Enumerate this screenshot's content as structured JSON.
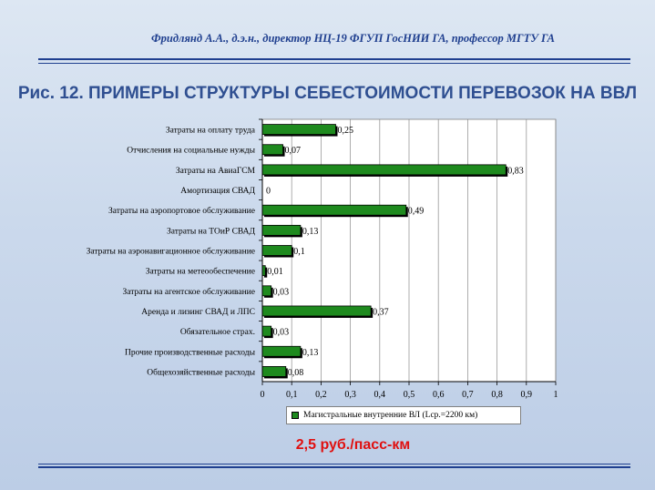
{
  "header": {
    "author": "Фридлянд А.А., д.э.н., директор НЦ-19 ФГУП ГосНИИ ГА, профессор МГТУ ГА",
    "title": "Рис. 12. ПРИМЕРЫ СТРУКТУРЫ СЕБЕСТОИМОСТИ ПЕРЕВОЗОК НА ВВЛ"
  },
  "footer": {
    "value": "2,5 руб./пасс-км"
  },
  "colors": {
    "bar": "#1e8a1e",
    "title": "#2f4f91",
    "author": "#1f3f8f",
    "footer": "#e01010"
  },
  "chart_data": {
    "type": "bar",
    "orientation": "horizontal",
    "categories": [
      "Затраты на оплату труда",
      "Отчисления на социальные нужды",
      "Затраты на АвиаГСМ",
      "Амортизация СВАД",
      "Затраты на аэропортовое обслуживание",
      "Затраты на ТОиР СВАД",
      "Затраты на аэронавигационное обслуживание",
      "Затраты на метеообеспечение",
      "Затраты на агентское обслуживание",
      "Аренда и лизинг СВАД и ЛПС",
      "Обязательное страх.",
      "Прочие производственные расходы",
      "Общехозяйственные расходы"
    ],
    "series": [
      {
        "name": "Магистральные внутренние ВЛ (Lср.=2200 км)",
        "values": [
          0.25,
          0.07,
          0.83,
          0,
          0.49,
          0.13,
          0.1,
          0.01,
          0.03,
          0.37,
          0.03,
          0.13,
          0.08
        ],
        "labels": [
          "0,25",
          "0,07",
          "0,83",
          "0",
          "0,49",
          "0,13",
          "0,1",
          "0,01",
          "0,03",
          "0,37",
          "0,03",
          "0,13",
          "0,08"
        ]
      }
    ],
    "xlim": [
      0,
      1
    ],
    "xticks": [
      "0",
      "0,1",
      "0,2",
      "0,3",
      "0,4",
      "0,5",
      "0,6",
      "0,7",
      "0,8",
      "0,9",
      "1"
    ],
    "grid": true,
    "legend_position": "bottom"
  }
}
